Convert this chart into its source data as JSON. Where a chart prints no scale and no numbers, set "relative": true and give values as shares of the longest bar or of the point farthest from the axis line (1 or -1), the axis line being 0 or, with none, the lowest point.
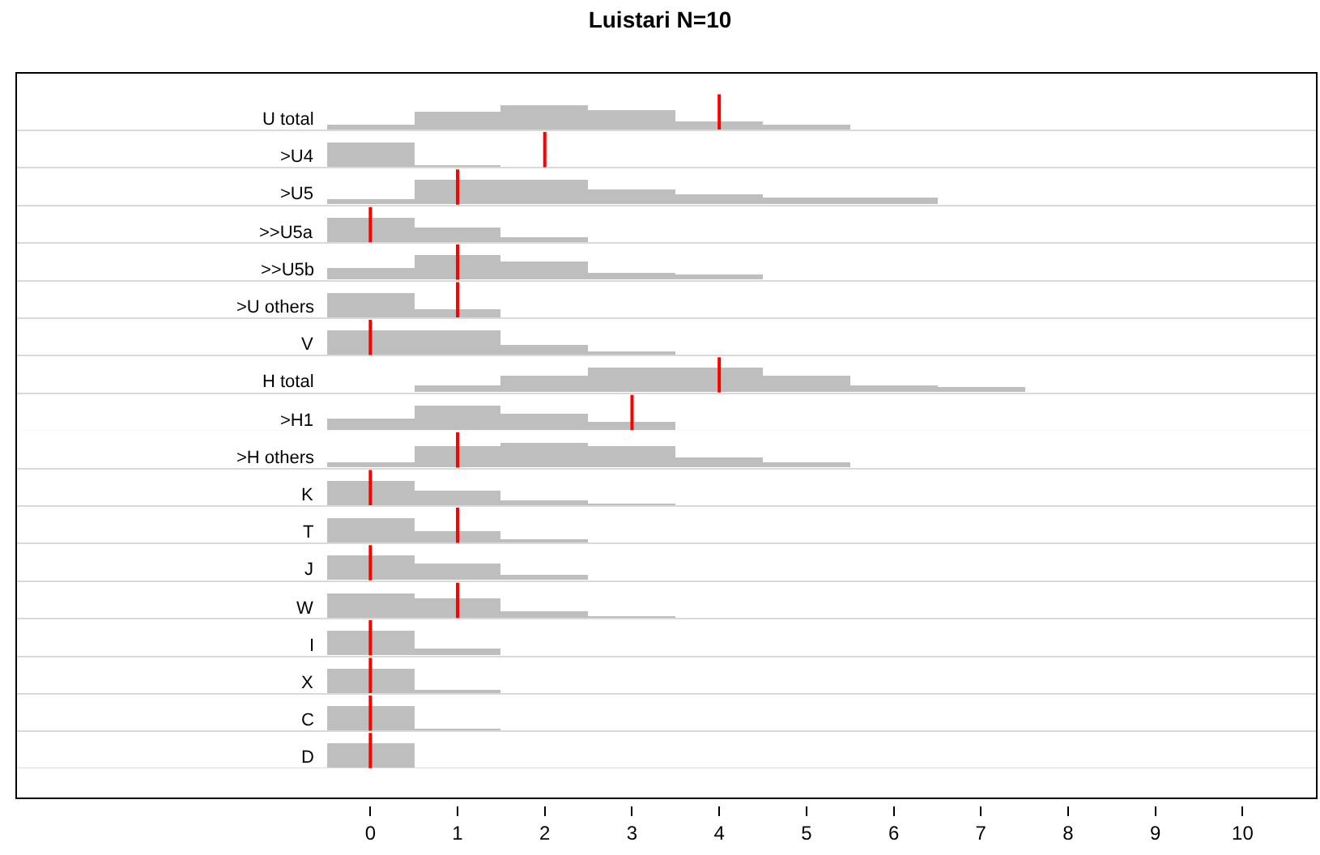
{
  "chart_data": [
    {
      "type": "bar",
      "title": "Luistari N=10",
      "ylabel": "U total",
      "relative": true,
      "x": [
        0,
        1,
        2,
        3,
        4,
        5
      ],
      "values": [
        0.2,
        0.75,
        1,
        0.8,
        0.35,
        0.2
      ],
      "color": "#bebebe",
      "xlim": [
        -4.06,
        10.85
      ],
      "tick_labels": false,
      "ref_lines": [
        {
          "axis": "x",
          "value": 4,
          "color": "#ff0000"
        }
      ]
    },
    {
      "type": "bar",
      "ylabel": ">U4",
      "relative": true,
      "x": [
        0,
        1
      ],
      "values": [
        1,
        0.1
      ],
      "color": "#bebebe",
      "xlim": [
        -4.06,
        10.85
      ],
      "tick_labels": false,
      "ref_lines": [
        {
          "axis": "x",
          "value": 2,
          "color": "#ff0000"
        }
      ]
    },
    {
      "type": "bar",
      "ylabel": ">U5",
      "relative": true,
      "x": [
        0,
        1,
        2,
        3,
        4,
        5,
        6
      ],
      "values": [
        0.2,
        1,
        1,
        0.6,
        0.4,
        0.25,
        0.25
      ],
      "color": "#bebebe",
      "xlim": [
        -4.06,
        10.85
      ],
      "tick_labels": false,
      "ref_lines": [
        {
          "axis": "x",
          "value": 1,
          "color": "#ff0000"
        }
      ]
    },
    {
      "type": "bar",
      "ylabel": ">>U5a",
      "relative": true,
      "x": [
        0,
        1,
        2
      ],
      "values": [
        1,
        0.6,
        0.2
      ],
      "color": "#bebebe",
      "xlim": [
        -4.06,
        10.85
      ],
      "tick_labels": false,
      "ref_lines": [
        {
          "axis": "x",
          "value": 0,
          "color": "#ff0000"
        }
      ]
    },
    {
      "type": "bar",
      "ylabel": ">>U5b",
      "relative": true,
      "x": [
        0,
        1,
        2,
        3,
        4
      ],
      "values": [
        0.5,
        1,
        0.75,
        0.3,
        0.2
      ],
      "color": "#bebebe",
      "xlim": [
        -4.06,
        10.85
      ],
      "tick_labels": false,
      "ref_lines": [
        {
          "axis": "x",
          "value": 1,
          "color": "#ff0000"
        }
      ]
    },
    {
      "type": "bar",
      "ylabel": ">U others",
      "relative": true,
      "x": [
        0,
        1
      ],
      "values": [
        1,
        0.35
      ],
      "color": "#bebebe",
      "xlim": [
        -4.06,
        10.85
      ],
      "tick_labels": false,
      "ref_lines": [
        {
          "axis": "x",
          "value": 1,
          "color": "#ff0000"
        }
      ]
    },
    {
      "type": "bar",
      "ylabel": "V",
      "relative": true,
      "x": [
        0,
        1,
        2,
        3
      ],
      "values": [
        1,
        1,
        0.4,
        0.15
      ],
      "color": "#bebebe",
      "xlim": [
        -4.06,
        10.85
      ],
      "tick_labels": false,
      "ref_lines": [
        {
          "axis": "x",
          "value": 0,
          "color": "#ff0000"
        }
      ]
    },
    {
      "type": "bar",
      "ylabel": "H total",
      "relative": true,
      "x": [
        0,
        1,
        2,
        3,
        4,
        5,
        6,
        7
      ],
      "values": [
        0,
        0.25,
        0.65,
        1,
        1,
        0.65,
        0.3,
        0.2
      ],
      "color": "#bebebe",
      "xlim": [
        -4.06,
        10.85
      ],
      "tick_labels": false,
      "ref_lines": [
        {
          "axis": "x",
          "value": 4,
          "color": "#ff0000"
        }
      ]
    },
    {
      "type": "bar",
      "ylabel": ">H1",
      "relative": true,
      "x": [
        0,
        1,
        2,
        3
      ],
      "values": [
        0.45,
        1,
        0.65,
        0.35
      ],
      "color": "#bebebe",
      "xlim": [
        -4.06,
        10.85
      ],
      "tick_labels": false,
      "ref_lines": [
        {
          "axis": "x",
          "value": 3,
          "color": "#ff0000"
        }
      ]
    },
    {
      "type": "bar",
      "ylabel": ">H others",
      "relative": true,
      "x": [
        0,
        1,
        2,
        3,
        4,
        5
      ],
      "values": [
        0.2,
        0.85,
        1,
        0.85,
        0.4,
        0.2
      ],
      "color": "#bebebe",
      "xlim": [
        -4.06,
        10.85
      ],
      "tick_labels": false,
      "ref_lines": [
        {
          "axis": "x",
          "value": 1,
          "color": "#ff0000"
        }
      ]
    },
    {
      "type": "bar",
      "ylabel": "K",
      "relative": true,
      "x": [
        0,
        1,
        2,
        3
      ],
      "values": [
        1,
        0.6,
        0.2,
        0.1
      ],
      "color": "#bebebe",
      "xlim": [
        -4.06,
        10.85
      ],
      "tick_labels": false,
      "ref_lines": [
        {
          "axis": "x",
          "value": 0,
          "color": "#ff0000"
        }
      ]
    },
    {
      "type": "bar",
      "ylabel": "T",
      "relative": true,
      "x": [
        0,
        1,
        2
      ],
      "values": [
        1,
        0.45,
        0.15
      ],
      "color": "#bebebe",
      "xlim": [
        -4.06,
        10.85
      ],
      "tick_labels": false,
      "ref_lines": [
        {
          "axis": "x",
          "value": 1,
          "color": "#ff0000"
        }
      ]
    },
    {
      "type": "bar",
      "ylabel": "J",
      "relative": true,
      "x": [
        0,
        1,
        2
      ],
      "values": [
        1,
        0.65,
        0.2
      ],
      "color": "#bebebe",
      "xlim": [
        -4.06,
        10.85
      ],
      "tick_labels": false,
      "ref_lines": [
        {
          "axis": "x",
          "value": 0,
          "color": "#ff0000"
        }
      ]
    },
    {
      "type": "bar",
      "ylabel": "W",
      "relative": true,
      "x": [
        0,
        1,
        2,
        3
      ],
      "values": [
        1,
        0.8,
        0.25,
        0.1
      ],
      "color": "#bebebe",
      "xlim": [
        -4.06,
        10.85
      ],
      "tick_labels": false,
      "ref_lines": [
        {
          "axis": "x",
          "value": 1,
          "color": "#ff0000"
        }
      ]
    },
    {
      "type": "bar",
      "ylabel": "I",
      "relative": true,
      "x": [
        0,
        1
      ],
      "values": [
        1,
        0.3
      ],
      "color": "#bebebe",
      "xlim": [
        -4.06,
        10.85
      ],
      "tick_labels": false,
      "ref_lines": [
        {
          "axis": "x",
          "value": 0,
          "color": "#ff0000"
        }
      ]
    },
    {
      "type": "bar",
      "ylabel": "X",
      "relative": true,
      "x": [
        0,
        1
      ],
      "values": [
        1,
        0.15
      ],
      "color": "#bebebe",
      "xlim": [
        -4.06,
        10.85
      ],
      "tick_labels": false,
      "ref_lines": [
        {
          "axis": "x",
          "value": 0,
          "color": "#ff0000"
        }
      ]
    },
    {
      "type": "bar",
      "ylabel": "C",
      "relative": true,
      "x": [
        0,
        1
      ],
      "values": [
        1,
        0.07
      ],
      "color": "#bebebe",
      "xlim": [
        -4.06,
        10.85
      ],
      "tick_labels": false,
      "ref_lines": [
        {
          "axis": "x",
          "value": 0,
          "color": "#ff0000"
        }
      ]
    },
    {
      "type": "bar",
      "ylabel": "D",
      "relative": true,
      "x": [
        0
      ],
      "values": [
        1
      ],
      "color": "#bebebe",
      "xlim": [
        -4.06,
        10.85
      ],
      "tick_labels": "x",
      "xticks": [
        0,
        1,
        2,
        3,
        4,
        5,
        6,
        7,
        8,
        9,
        10
      ],
      "ref_lines": [
        {
          "axis": "x",
          "value": 0,
          "color": "#ff0000"
        }
      ]
    }
  ]
}
